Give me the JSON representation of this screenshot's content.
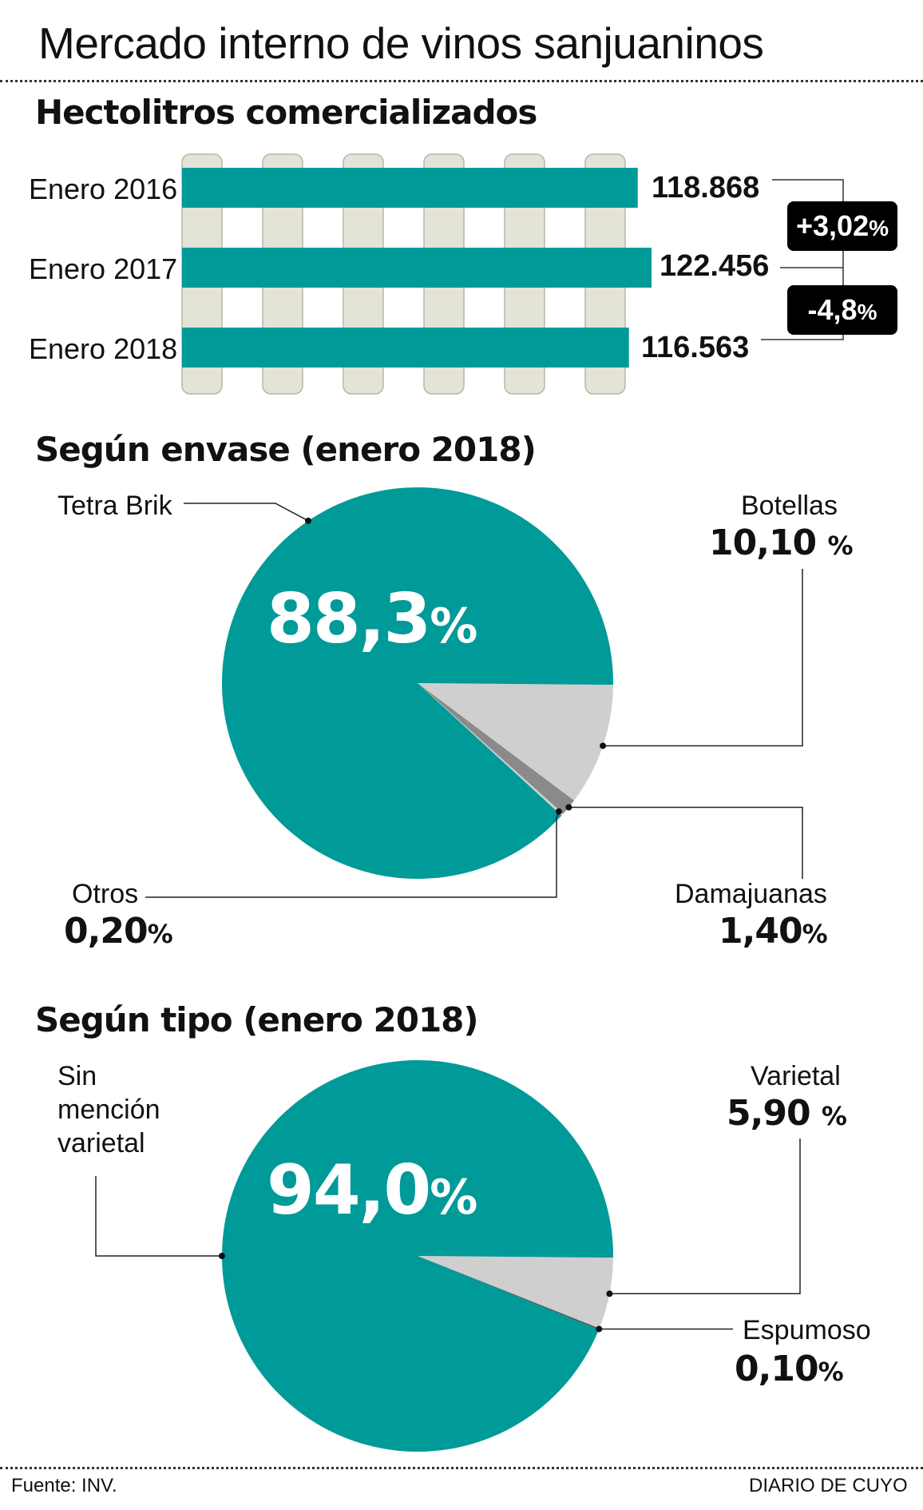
{
  "title": "Mercado interno de vinos sanjuaninos",
  "bar_section_title": "Hectolitros comercializados",
  "pie1_title": "Según envase (enero 2018)",
  "pie2_title": "Según tipo (enero 2018)",
  "colors": {
    "teal": "#009a98",
    "light_gray": "#cfcfcf",
    "mid_gray": "#8a8a8a",
    "dark_gray": "#444444",
    "stripe": "#e3e3d7"
  },
  "bars": {
    "labels": [
      "Enero 2016",
      "Enero 2017",
      "Enero 2018"
    ],
    "value_labels": [
      "118.868",
      "122.456",
      "116.563"
    ]
  },
  "changes": [
    {
      "text": "+3,02",
      "unit": "%"
    },
    {
      "text": "-4,8",
      "unit": "%"
    }
  ],
  "pie1": {
    "big_value": "88,3",
    "big_unit": "%",
    "labels": {
      "tetra": "Tetra Brik",
      "botellas": "Botellas",
      "botellas_pct": "10,10",
      "botellas_unit": "%",
      "damajuanas": "Damajuanas",
      "damajuanas_pct": "1,40",
      "damajuanas_unit": "%",
      "otros": "Otros",
      "otros_pct": "0,20",
      "otros_unit": "%"
    }
  },
  "pie2": {
    "big_value": "94,0",
    "big_unit": "%",
    "labels": {
      "sin_line1": "Sin",
      "sin_line2": "mención",
      "sin_line3": "varietal",
      "varietal": "Varietal",
      "varietal_pct": "5,90",
      "varietal_unit": "%",
      "espumoso": "Espumoso",
      "espumoso_pct": "0,10",
      "espumoso_unit": "%"
    }
  },
  "footer": {
    "source": "Fuente: INV.",
    "publisher": "DIARIO DE CUYO"
  },
  "chart_data": [
    {
      "type": "bar",
      "title": "Hectolitros comercializados",
      "categories": [
        "Enero 2016",
        "Enero 2017",
        "Enero 2018"
      ],
      "values": [
        118868,
        122456,
        116563
      ],
      "changes_percent": [
        3.02,
        -4.8
      ]
    },
    {
      "type": "pie",
      "title": "Según envase (enero 2018)",
      "categories": [
        "Tetra Brik",
        "Botellas",
        "Damajuanas",
        "Otros"
      ],
      "values": [
        88.3,
        10.1,
        1.4,
        0.2
      ]
    },
    {
      "type": "pie",
      "title": "Según tipo (enero 2018)",
      "categories": [
        "Sin mención varietal",
        "Varietal",
        "Espumoso"
      ],
      "values": [
        94.0,
        5.9,
        0.1
      ]
    }
  ]
}
